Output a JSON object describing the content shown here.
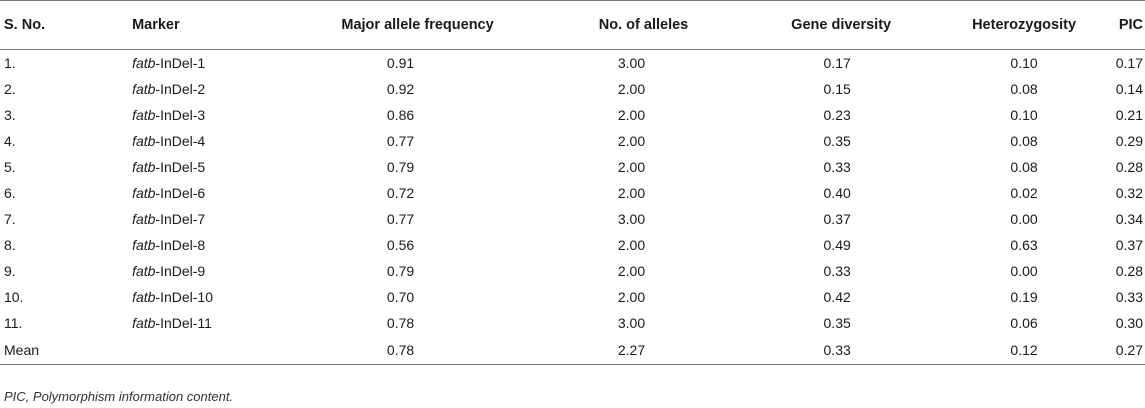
{
  "table": {
    "headers": {
      "sno": "S. No.",
      "marker": "Marker",
      "maf": "Major allele frequency",
      "alleles": "No. of alleles",
      "gd": "Gene diversity",
      "het": "Heterozygosity",
      "pic": "PIC"
    },
    "rows": [
      {
        "sno": "1.",
        "gene": "fatb",
        "suffix": "-InDel-1",
        "maf": "0.91",
        "alleles": "3.00",
        "gd": "0.17",
        "het": "0.10",
        "pic": "0.17"
      },
      {
        "sno": "2.",
        "gene": "fatb",
        "suffix": "-InDel-2",
        "maf": "0.92",
        "alleles": "2.00",
        "gd": "0.15",
        "het": "0.08",
        "pic": "0.14"
      },
      {
        "sno": "3.",
        "gene": "fatb",
        "suffix": "-InDel-3",
        "maf": "0.86",
        "alleles": "2.00",
        "gd": "0.23",
        "het": "0.10",
        "pic": "0.21"
      },
      {
        "sno": "4.",
        "gene": "fatb",
        "suffix": "-InDel-4",
        "maf": "0.77",
        "alleles": "2.00",
        "gd": "0.35",
        "het": "0.08",
        "pic": "0.29"
      },
      {
        "sno": "5.",
        "gene": "fatb",
        "suffix": "-InDel-5",
        "maf": "0.79",
        "alleles": "2.00",
        "gd": "0.33",
        "het": "0.08",
        "pic": "0.28"
      },
      {
        "sno": "6.",
        "gene": "fatb",
        "suffix": "-InDel-6",
        "maf": "0.72",
        "alleles": "2.00",
        "gd": "0.40",
        "het": "0.02",
        "pic": "0.32"
      },
      {
        "sno": "7.",
        "gene": "fatb",
        "suffix": "-InDel-7",
        "maf": "0.77",
        "alleles": "3.00",
        "gd": "0.37",
        "het": "0.00",
        "pic": "0.34"
      },
      {
        "sno": "8.",
        "gene": "fatb",
        "suffix": "-InDel-8",
        "maf": "0.56",
        "alleles": "2.00",
        "gd": "0.49",
        "het": "0.63",
        "pic": "0.37"
      },
      {
        "sno": "9.",
        "gene": "fatb",
        "suffix": "-InDel-9",
        "maf": "0.79",
        "alleles": "2.00",
        "gd": "0.33",
        "het": "0.00",
        "pic": "0.28"
      },
      {
        "sno": "10.",
        "gene": "fatb",
        "suffix": "-InDel-10",
        "maf": "0.70",
        "alleles": "2.00",
        "gd": "0.42",
        "het": "0.19",
        "pic": "0.33"
      },
      {
        "sno": "11.",
        "gene": "fatb",
        "suffix": "-InDel-11",
        "maf": "0.78",
        "alleles": "3.00",
        "gd": "0.35",
        "het": "0.06",
        "pic": "0.30"
      }
    ],
    "mean": {
      "sno": "Mean",
      "maf": "0.78",
      "alleles": "2.27",
      "gd": "0.33",
      "het": "0.12",
      "pic": "0.27"
    }
  },
  "footnote": "PIC, Polymorphism information content."
}
